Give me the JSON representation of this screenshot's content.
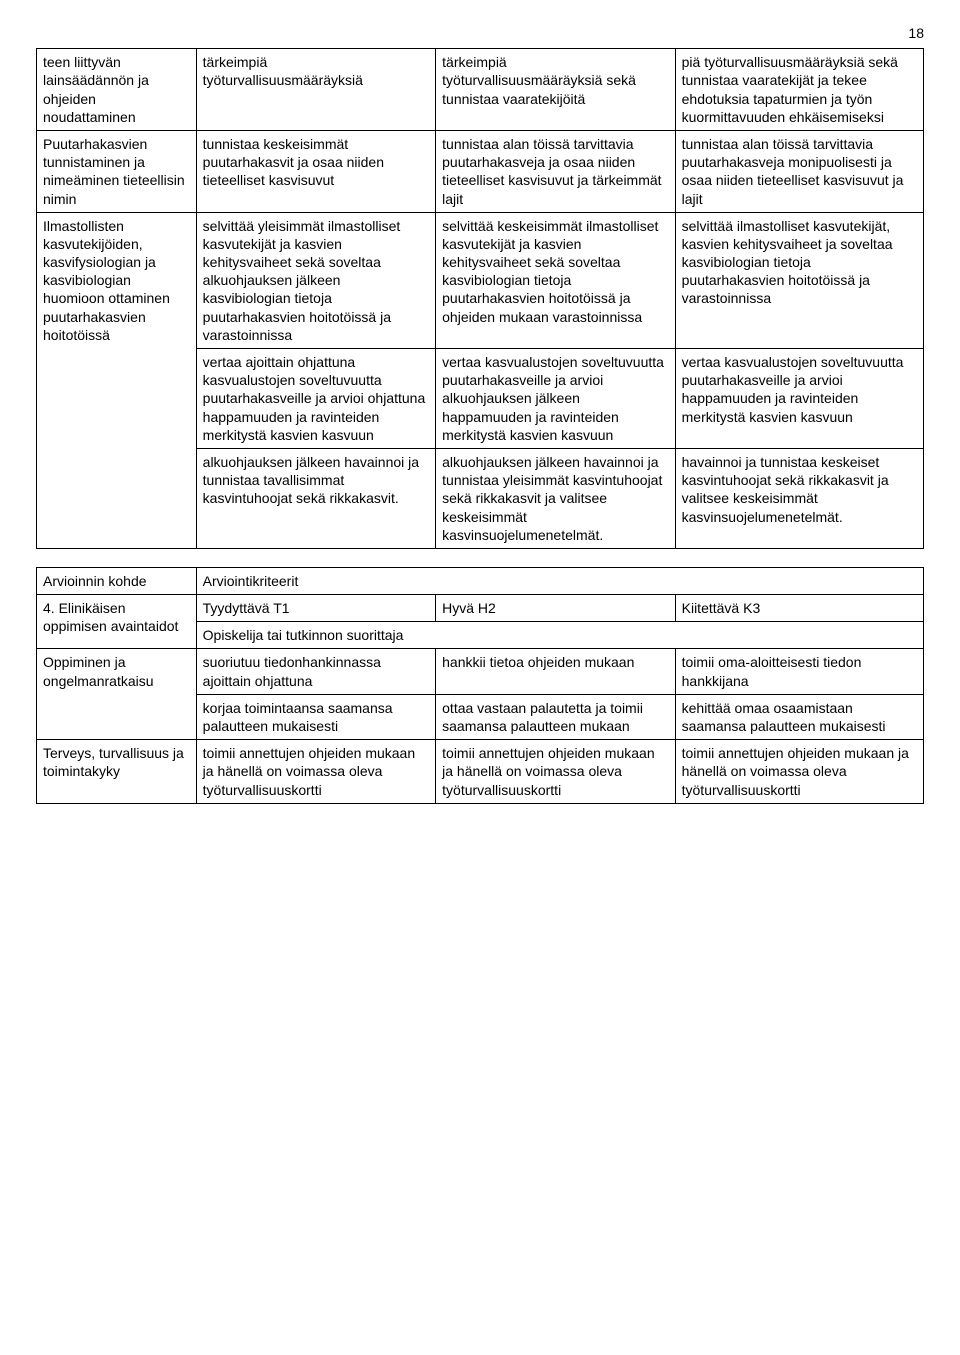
{
  "page_number": "18",
  "table1": {
    "rows": [
      {
        "c1": "teen liittyvän lainsäädännön ja ohjeiden noudattaminen",
        "c2": "tärkeimpiä työturvallisuusmääräyksiä",
        "c3": "tärkeimpiä työturvallisuusmääräyksiä sekä tunnistaa vaaratekijöitä",
        "c4": "piä työturvallisuusmääräyksiä sekä tunnistaa vaaratekijät ja tekee ehdotuksia tapaturmien ja työn kuormittavuuden ehkäisemiseksi"
      },
      {
        "c1": "Puutarhakasvien tunnistaminen ja nimeäminen tieteellisin nimin",
        "c2": "tunnistaa keskeisimmät puutarhakasvit ja osaa niiden tieteelliset kasvisuvut",
        "c3": "tunnistaa alan töissä tarvittavia puutarhakasveja ja osaa niiden tieteelliset kasvisuvut ja tärkeimmät lajit",
        "c4": "tunnistaa alan töissä tarvittavia puutarhakasveja monipuolisesti ja osaa niiden tieteelliset kasvisuvut ja lajit"
      },
      {
        "c1": "Ilmastollisten kasvutekijöiden, kasvifysiologian ja kasvibiologian huomioon ottaminen puutarhakasvien hoitotöissä",
        "c2": "selvittää yleisimmät ilmastolliset kasvutekijät ja kasvien kehitysvaiheet sekä soveltaa alkuohjauksen jälkeen kasvibiologian tietoja puutarhakasvien hoitotöissä ja varastoinnissa",
        "c3": "selvittää keskeisimmät ilmastolliset kasvutekijät ja kasvien kehitysvaiheet sekä soveltaa kasvibiologian tietoja puutarhakasvien hoitotöissä ja ohjeiden mukaan varastoinnissa",
        "c4": "selvittää ilmastolliset kasvutekijät, kasvien kehitysvaiheet ja soveltaa kasvibiologian tietoja puutarhakasvien hoitotöissä ja varastoinnissa"
      },
      {
        "c1": "",
        "c2": "vertaa ajoittain ohjattuna kasvualustojen soveltuvuutta puutarhakasveille ja arvioi ohjattuna happamuuden ja ravinteiden merkitystä kasvien kasvuun",
        "c3": "vertaa kasvualustojen soveltuvuutta puutarhakasveille ja arvioi alkuohjauksen jälkeen happamuuden ja ravinteiden merkitystä kasvien kasvuun",
        "c4": "vertaa kasvualustojen soveltuvuutta puutarhakasveille ja arvioi happamuuden ja ravinteiden merkitystä kasvien kasvuun"
      },
      {
        "c1": "",
        "c2": "alkuohjauksen jälkeen havainnoi ja tunnistaa tavallisimmat kasvintuhoojat sekä rikkakasvit.",
        "c3": "alkuohjauksen jälkeen havainnoi ja tunnistaa yleisimmät kasvintuhoojat sekä rikkakasvit ja valitsee keskeisimmät kasvinsuojelumenetelmät.",
        "c4": "havainnoi ja tunnistaa keskeiset kasvintuhoojat sekä rikkakasvit ja valitsee keskeisimmät kasvinsuojelumenetelmät."
      }
    ]
  },
  "table2": {
    "header": {
      "c1": "Arvioinnin kohde",
      "c2": "Arviointikriteerit"
    },
    "subheader": {
      "c1": "4. Elinikäisen oppimisen avaintaidot",
      "c2": "Tyydyttävä T1",
      "c3": "Hyvä H2",
      "c4": "Kiitettävä K3"
    },
    "sub2": {
      "c2": "Opiskelija tai tutkinnon suorittaja"
    },
    "rows": [
      {
        "c1": "Oppiminen ja ongelmanratkaisu",
        "c2": "suoriutuu tiedonhankinnassa ajoittain ohjattuna",
        "c3": "hankkii tietoa ohjeiden mukaan",
        "c4": "toimii oma-aloitteisesti tiedon hankkijana"
      },
      {
        "c1": "",
        "c2": "korjaa toimintaansa saamansa palautteen mukaisesti",
        "c3": "ottaa vastaan palautetta ja toimii saamansa palautteen mukaan",
        "c4": "kehittää omaa osaamistaan saamansa palautteen mukaisesti"
      },
      {
        "c1": "Terveys, turvallisuus ja toimintakyky",
        "c2": "toimii annettujen ohjeiden mukaan ja hänellä on voimassa oleva työturvallisuuskortti",
        "c3": "toimii annettujen ohjeiden mukaan ja hänellä on voimassa oleva työturvallisuuskortti",
        "c4": "toimii annettujen ohjeiden mukaan ja hänellä on voimassa oleva työturvallisuuskortti"
      }
    ]
  }
}
